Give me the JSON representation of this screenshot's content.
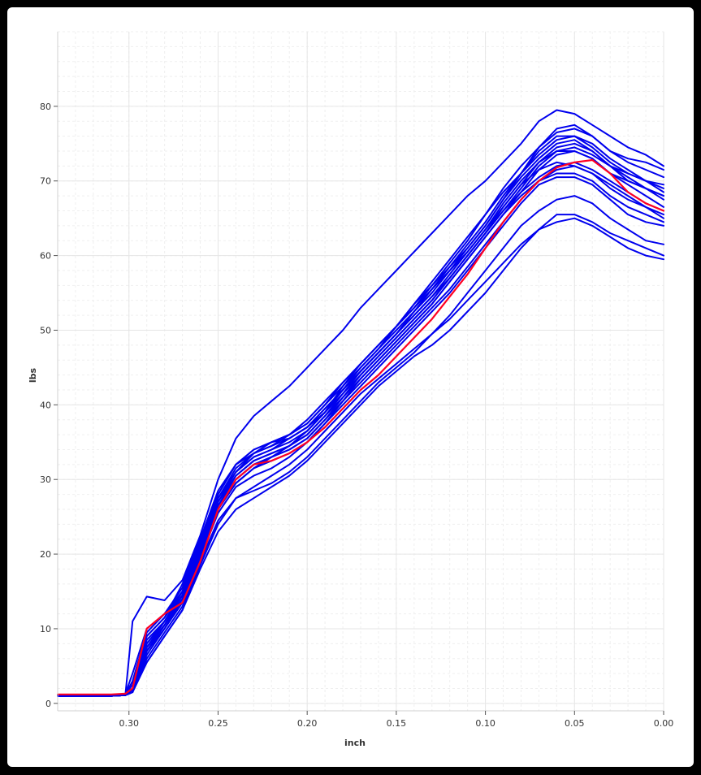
{
  "chart_data": {
    "type": "line",
    "title": "",
    "xlabel": "inch",
    "ylabel": "lbs",
    "xlim": [
      0.34,
      0.0
    ],
    "ylim": [
      -1,
      90
    ],
    "x_reversed": true,
    "x_ticks": [
      0.3,
      0.25,
      0.2,
      0.15,
      0.1,
      0.05,
      0.0
    ],
    "x_tick_labels": [
      "0.30",
      "0.25",
      "0.20",
      "0.15",
      "0.10",
      "0.05",
      "0.00"
    ],
    "y_ticks": [
      0,
      10,
      20,
      30,
      40,
      50,
      60,
      70,
      80
    ],
    "y_tick_labels": [
      "0",
      "10",
      "20",
      "30",
      "40",
      "50",
      "60",
      "70",
      "80"
    ],
    "grid": true,
    "minor_grid": true,
    "legend": "none",
    "colors": {
      "series": "#0000ee",
      "highlight": "#ff0022",
      "grid_major": "#e6e6e6",
      "grid_minor": "#efefef",
      "background": "#ffffff",
      "frame": "#000000"
    },
    "x": [
      0.34,
      0.31,
      0.302,
      0.298,
      0.29,
      0.28,
      0.27,
      0.26,
      0.25,
      0.24,
      0.23,
      0.22,
      0.21,
      0.2,
      0.19,
      0.18,
      0.17,
      0.16,
      0.15,
      0.14,
      0.13,
      0.12,
      0.11,
      0.1,
      0.09,
      0.08,
      0.07,
      0.06,
      0.05,
      0.04,
      0.03,
      0.02,
      0.01,
      0.0
    ],
    "series": [
      {
        "values": [
          1.0,
          1.1,
          1.2,
          11.0,
          14.3,
          13.8,
          16.5,
          22.5,
          30.0,
          35.5,
          38.5,
          40.5,
          42.5,
          45.0,
          47.5,
          50.0,
          53.0,
          55.5,
          58.0,
          60.5,
          63.0,
          65.5,
          68.0,
          70.0,
          72.5,
          75.0,
          78.0,
          79.5,
          79.0,
          77.5,
          76.0,
          74.5,
          73.5,
          72.0
        ]
      },
      {
        "values": [
          1.0,
          1.0,
          1.1,
          2.0,
          9.0,
          11.5,
          16.0,
          22.0,
          28.5,
          32.0,
          34.0,
          35.0,
          35.5,
          37.0,
          39.0,
          42.0,
          45.0,
          47.5,
          50.0,
          52.5,
          55.0,
          58.0,
          61.0,
          64.0,
          67.5,
          71.0,
          74.5,
          77.0,
          77.5,
          76.0,
          74.0,
          72.5,
          71.5,
          70.5
        ]
      },
      {
        "values": [
          1.0,
          1.1,
          1.3,
          4.0,
          10.0,
          12.0,
          15.5,
          21.5,
          27.5,
          31.0,
          33.0,
          34.0,
          35.0,
          36.5,
          39.0,
          42.5,
          45.5,
          48.0,
          50.5,
          53.0,
          55.5,
          58.5,
          61.5,
          64.5,
          68.0,
          71.0,
          74.0,
          76.0,
          76.0,
          74.5,
          72.5,
          71.0,
          70.0,
          69.5
        ]
      },
      {
        "values": [
          1.0,
          1.0,
          1.2,
          1.8,
          8.0,
          11.0,
          15.0,
          21.0,
          27.5,
          31.5,
          33.5,
          34.5,
          35.5,
          37.0,
          39.5,
          42.0,
          44.5,
          47.0,
          49.5,
          52.5,
          55.5,
          58.0,
          60.5,
          63.5,
          66.5,
          69.5,
          72.5,
          74.5,
          75.0,
          74.0,
          72.0,
          71.0,
          70.0,
          68.5
        ]
      },
      {
        "values": [
          1.0,
          1.0,
          1.1,
          1.5,
          7.5,
          10.5,
          14.5,
          20.5,
          26.5,
          30.5,
          32.5,
          33.5,
          34.5,
          36.0,
          38.5,
          41.5,
          44.5,
          47.0,
          49.5,
          52.0,
          54.5,
          57.0,
          60.0,
          63.0,
          66.0,
          69.0,
          72.0,
          74.0,
          74.5,
          73.5,
          72.0,
          70.5,
          69.0,
          67.5
        ]
      },
      {
        "values": [
          1.0,
          1.1,
          1.2,
          2.5,
          9.0,
          11.5,
          15.0,
          21.5,
          28.0,
          32.0,
          33.5,
          34.5,
          36.0,
          37.5,
          40.0,
          42.5,
          45.0,
          47.5,
          50.5,
          53.5,
          56.0,
          58.5,
          61.0,
          64.0,
          67.5,
          70.5,
          73.0,
          75.0,
          75.5,
          74.0,
          72.0,
          70.0,
          69.0,
          68.0
        ]
      },
      {
        "values": [
          1.0,
          1.0,
          1.2,
          1.5,
          7.0,
          10.0,
          14.0,
          20.0,
          26.0,
          29.5,
          31.5,
          33.0,
          34.5,
          36.5,
          39.0,
          41.5,
          44.0,
          46.5,
          49.0,
          51.5,
          54.0,
          57.0,
          60.0,
          63.0,
          66.0,
          68.5,
          70.5,
          72.0,
          72.5,
          71.5,
          70.0,
          68.5,
          67.0,
          66.0
        ]
      },
      {
        "values": [
          1.0,
          1.0,
          1.1,
          1.5,
          7.0,
          10.5,
          14.5,
          20.5,
          26.5,
          30.0,
          32.0,
          33.0,
          34.0,
          35.5,
          38.0,
          40.5,
          43.0,
          45.5,
          48.0,
          50.5,
          53.0,
          55.5,
          58.5,
          61.5,
          64.5,
          67.5,
          70.0,
          71.5,
          72.0,
          71.0,
          69.5,
          68.0,
          66.5,
          65.0
        ]
      },
      {
        "values": [
          1.0,
          1.0,
          1.1,
          1.5,
          7.5,
          11.0,
          14.5,
          20.5,
          27.0,
          30.5,
          32.5,
          33.5,
          34.5,
          36.0,
          38.5,
          41.0,
          43.5,
          46.0,
          48.5,
          51.0,
          53.5,
          56.5,
          59.5,
          62.5,
          65.5,
          68.5,
          71.5,
          73.5,
          74.0,
          73.0,
          71.0,
          69.5,
          68.0,
          66.5
        ]
      },
      {
        "values": [
          1.0,
          1.0,
          1.1,
          1.5,
          6.5,
          10.0,
          13.5,
          19.5,
          25.5,
          29.0,
          30.5,
          31.5,
          33.0,
          35.0,
          37.5,
          40.0,
          42.5,
          45.0,
          47.5,
          50.0,
          52.5,
          55.0,
          58.0,
          61.0,
          64.0,
          67.0,
          69.5,
          70.5,
          70.5,
          69.5,
          67.5,
          65.5,
          64.5,
          64.0
        ]
      },
      {
        "values": [
          1.0,
          1.0,
          1.1,
          1.5,
          6.0,
          9.5,
          13.0,
          19.0,
          24.5,
          27.5,
          28.5,
          29.5,
          31.0,
          33.0,
          35.5,
          38.0,
          40.5,
          43.0,
          45.0,
          47.0,
          49.5,
          52.0,
          55.0,
          58.0,
          61.0,
          64.0,
          66.0,
          67.5,
          68.0,
          67.0,
          65.0,
          63.5,
          62.0,
          61.5
        ]
      },
      {
        "values": [
          1.0,
          1.0,
          1.1,
          1.5,
          5.5,
          9.0,
          12.5,
          18.0,
          23.0,
          26.0,
          27.5,
          29.0,
          30.5,
          32.5,
          35.0,
          37.5,
          40.0,
          42.5,
          44.5,
          46.5,
          48.0,
          50.0,
          52.5,
          55.0,
          58.0,
          61.0,
          63.5,
          65.5,
          65.5,
          64.5,
          63.0,
          62.0,
          61.0,
          60.0
        ]
      },
      {
        "values": [
          1.0,
          1.0,
          1.1,
          1.5,
          5.5,
          9.0,
          12.5,
          18.5,
          24.0,
          27.5,
          29.0,
          30.5,
          32.0,
          34.0,
          36.5,
          39.0,
          41.5,
          43.5,
          45.5,
          47.5,
          49.5,
          51.5,
          54.0,
          56.5,
          59.0,
          61.5,
          63.5,
          64.5,
          65.0,
          64.0,
          62.5,
          61.0,
          60.0,
          59.5
        ]
      },
      {
        "values": [
          1.0,
          1.0,
          1.1,
          1.5,
          8.5,
          11.0,
          14.5,
          20.5,
          27.0,
          31.0,
          33.5,
          35.0,
          36.0,
          37.5,
          40.0,
          43.0,
          45.5,
          48.0,
          50.5,
          53.5,
          56.5,
          59.5,
          62.5,
          65.5,
          68.5,
          71.0,
          73.5,
          75.5,
          76.0,
          75.0,
          73.0,
          71.5,
          70.0,
          69.0
        ]
      },
      {
        "values": [
          1.0,
          1.1,
          1.2,
          3.0,
          9.5,
          12.0,
          15.0,
          21.0,
          28.0,
          32.0,
          34.0,
          35.0,
          36.0,
          38.0,
          40.5,
          43.0,
          45.5,
          48.0,
          50.5,
          53.0,
          56.0,
          59.0,
          62.0,
          65.5,
          69.0,
          72.0,
          74.5,
          76.5,
          77.0,
          76.0,
          74.0,
          73.0,
          72.5,
          71.5
        ]
      },
      {
        "values": [
          1.0,
          1.0,
          1.1,
          1.5,
          7.0,
          10.5,
          14.0,
          20.0,
          26.0,
          29.5,
          31.5,
          32.5,
          33.5,
          35.0,
          37.5,
          40.5,
          43.5,
          46.0,
          48.5,
          51.0,
          53.5,
          56.5,
          59.5,
          62.5,
          65.5,
          68.0,
          70.0,
          71.0,
          71.0,
          70.0,
          68.0,
          66.5,
          65.5,
          64.5
        ]
      },
      {
        "values": [
          1.0,
          1.0,
          1.1,
          1.5,
          8.0,
          11.0,
          14.5,
          20.5,
          27.5,
          31.0,
          33.0,
          34.0,
          35.5,
          37.0,
          39.5,
          42.0,
          44.5,
          47.0,
          49.5,
          52.0,
          54.5,
          57.5,
          60.5,
          63.5,
          67.0,
          70.0,
          72.5,
          74.0,
          74.0,
          73.0,
          71.0,
          70.0,
          69.0,
          68.0
        ]
      },
      {
        "values": [
          1.0,
          1.0,
          1.1,
          1.5,
          7.5,
          10.5,
          14.0,
          20.0,
          26.5,
          30.0,
          32.0,
          33.0,
          34.0,
          35.5,
          38.0,
          41.0,
          44.0,
          46.5,
          49.0,
          51.5,
          54.0,
          57.0,
          60.0,
          63.0,
          66.5,
          69.5,
          71.5,
          72.5,
          72.0,
          71.0,
          69.0,
          67.5,
          66.5,
          65.5
        ]
      }
    ],
    "highlight_series": {
      "values": [
        1.2,
        1.2,
        1.3,
        2.0,
        10.0,
        12.0,
        13.5,
        19.0,
        26.0,
        30.0,
        32.0,
        32.5,
        33.5,
        35.0,
        37.0,
        39.5,
        42.0,
        44.0,
        46.5,
        49.0,
        51.5,
        54.5,
        57.5,
        61.0,
        64.5,
        67.5,
        70.0,
        71.8,
        72.5,
        72.8,
        71.0,
        68.5,
        67.0,
        66.0
      ]
    }
  }
}
